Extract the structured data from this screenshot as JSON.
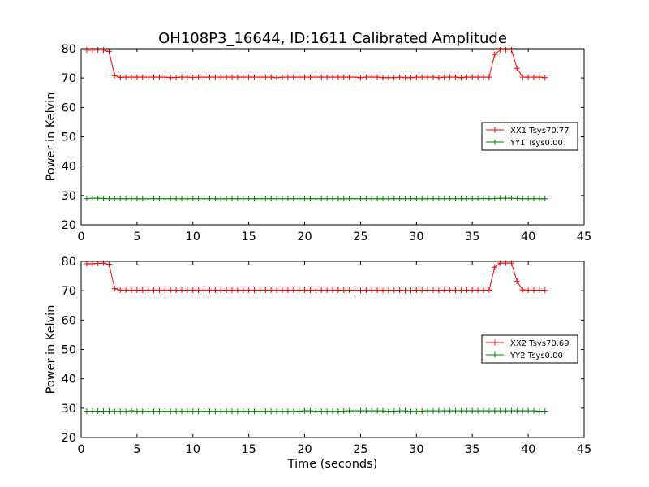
{
  "figure": {
    "title": "OH108P3_16644, ID:1611 Calibrated Amplitude",
    "xlabel": "Time (seconds)"
  },
  "chart_data": [
    {
      "type": "line",
      "ylabel": "Power in Kelvin",
      "xlim": [
        0,
        45
      ],
      "ylim": [
        20,
        80
      ],
      "xticks": [
        0,
        5,
        10,
        15,
        20,
        25,
        30,
        35,
        40,
        45
      ],
      "yticks": [
        20,
        30,
        40,
        50,
        60,
        70,
        80
      ],
      "legend_position": "right",
      "series": [
        {
          "name": "XX1 Tsys70.77",
          "color": "#ff0000",
          "x": [
            0.5,
            1.0,
            1.5,
            2.0,
            2.5,
            3.0,
            3.5,
            4.0,
            4.5,
            5.0,
            5.5,
            6.0,
            6.5,
            7.0,
            7.5,
            8.0,
            8.5,
            9.0,
            9.5,
            10.0,
            10.5,
            11.0,
            11.5,
            12.0,
            12.5,
            13.0,
            13.5,
            14.0,
            14.5,
            15.0,
            15.5,
            16.0,
            16.5,
            17.0,
            17.5,
            18.0,
            18.5,
            19.0,
            19.5,
            20.0,
            20.5,
            21.0,
            21.5,
            22.0,
            22.5,
            23.0,
            23.5,
            24.0,
            24.5,
            25.0,
            25.5,
            26.0,
            26.5,
            27.0,
            27.5,
            28.0,
            28.5,
            29.0,
            29.5,
            30.0,
            30.5,
            31.0,
            31.5,
            32.0,
            32.5,
            33.0,
            33.5,
            34.0,
            34.5,
            35.0,
            35.5,
            36.0,
            36.5,
            37.0,
            37.5,
            38.0,
            38.5,
            39.0,
            39.5,
            40.0,
            40.5,
            41.0,
            41.5
          ],
          "values": [
            79.5,
            79.5,
            79.6,
            79.5,
            79.0,
            70.8,
            70.2,
            70.3,
            70.3,
            70.3,
            70.3,
            70.3,
            70.3,
            70.3,
            70.3,
            70.1,
            70.2,
            70.3,
            70.3,
            70.2,
            70.3,
            70.3,
            70.3,
            70.3,
            70.3,
            70.3,
            70.3,
            70.3,
            70.3,
            70.3,
            70.3,
            70.3,
            70.3,
            70.3,
            70.1,
            70.3,
            70.3,
            70.3,
            70.3,
            70.3,
            70.3,
            70.3,
            70.3,
            70.3,
            70.3,
            70.3,
            70.3,
            70.3,
            70.3,
            70.1,
            70.3,
            70.3,
            70.3,
            70.1,
            70.1,
            70.1,
            70.3,
            70.1,
            70.1,
            70.3,
            70.3,
            70.3,
            70.3,
            70.1,
            70.3,
            70.3,
            70.3,
            70.1,
            70.3,
            70.3,
            70.3,
            70.3,
            70.3,
            78.0,
            79.6,
            79.6,
            79.6,
            73.3,
            70.3,
            70.3,
            70.3,
            70.3,
            70.1
          ]
        },
        {
          "name": "YY1 Tsys0.00",
          "color": "#008000",
          "x": [
            0.5,
            1.0,
            1.5,
            2.0,
            2.5,
            3.0,
            3.5,
            4.0,
            4.5,
            5.0,
            5.5,
            6.0,
            6.5,
            7.0,
            7.5,
            8.0,
            8.5,
            9.0,
            9.5,
            10.0,
            10.5,
            11.0,
            11.5,
            12.0,
            12.5,
            13.0,
            13.5,
            14.0,
            14.5,
            15.0,
            15.5,
            16.0,
            16.5,
            17.0,
            17.5,
            18.0,
            18.5,
            19.0,
            19.5,
            20.0,
            20.5,
            21.0,
            21.5,
            22.0,
            22.5,
            23.0,
            23.5,
            24.0,
            24.5,
            25.0,
            25.5,
            26.0,
            26.5,
            27.0,
            27.5,
            28.0,
            28.5,
            29.0,
            29.5,
            30.0,
            30.5,
            31.0,
            31.5,
            32.0,
            32.5,
            33.0,
            33.5,
            34.0,
            34.5,
            35.0,
            35.5,
            36.0,
            36.5,
            37.0,
            37.5,
            38.0,
            38.5,
            39.0,
            39.5,
            40.0,
            40.5,
            41.0,
            41.5
          ],
          "values": [
            28.9,
            29.1,
            29.1,
            29.0,
            28.9,
            28.9,
            28.9,
            28.9,
            28.9,
            28.9,
            28.9,
            28.9,
            28.9,
            28.9,
            28.9,
            28.9,
            28.9,
            28.9,
            28.9,
            28.9,
            28.9,
            28.9,
            28.9,
            28.9,
            28.9,
            28.9,
            28.9,
            28.9,
            28.9,
            28.9,
            28.9,
            28.9,
            28.9,
            28.9,
            28.9,
            28.9,
            28.9,
            28.9,
            28.9,
            28.9,
            28.9,
            28.9,
            28.9,
            28.9,
            28.9,
            28.9,
            28.9,
            28.9,
            28.9,
            28.9,
            28.9,
            28.9,
            28.9,
            28.9,
            28.9,
            28.9,
            28.9,
            28.9,
            28.9,
            28.9,
            28.9,
            28.9,
            28.9,
            28.9,
            28.9,
            28.9,
            28.9,
            28.9,
            28.9,
            28.9,
            28.9,
            29.0,
            28.9,
            29.0,
            29.1,
            29.1,
            29.1,
            29.0,
            28.9,
            28.9,
            28.9,
            28.9,
            28.9
          ]
        }
      ]
    },
    {
      "type": "line",
      "ylabel": "Power in Kelvin",
      "xlim": [
        0,
        45
      ],
      "ylim": [
        20,
        80
      ],
      "xticks": [
        0,
        5,
        10,
        15,
        20,
        25,
        30,
        35,
        40,
        45
      ],
      "yticks": [
        20,
        30,
        40,
        50,
        60,
        70,
        80
      ],
      "legend_position": "right",
      "series": [
        {
          "name": "XX2 Tsys70.69",
          "color": "#ff0000",
          "x": [
            0.5,
            1.0,
            1.5,
            2.0,
            2.5,
            3.0,
            3.5,
            4.0,
            4.5,
            5.0,
            5.5,
            6.0,
            6.5,
            7.0,
            7.5,
            8.0,
            8.5,
            9.0,
            9.5,
            10.0,
            10.5,
            11.0,
            11.5,
            12.0,
            12.5,
            13.0,
            13.5,
            14.0,
            14.5,
            15.0,
            15.5,
            16.0,
            16.5,
            17.0,
            17.5,
            18.0,
            18.5,
            19.0,
            19.5,
            20.0,
            20.5,
            21.0,
            21.5,
            22.0,
            22.5,
            23.0,
            23.5,
            24.0,
            24.5,
            25.0,
            25.5,
            26.0,
            26.5,
            27.0,
            27.5,
            28.0,
            28.5,
            29.0,
            29.5,
            30.0,
            30.5,
            31.0,
            31.5,
            32.0,
            32.5,
            33.0,
            33.5,
            34.0,
            34.5,
            35.0,
            35.5,
            36.0,
            36.5,
            37.0,
            37.5,
            38.0,
            38.5,
            39.0,
            39.5,
            40.0,
            40.5,
            41.0,
            41.5
          ],
          "values": [
            79.2,
            79.2,
            79.3,
            79.4,
            79.0,
            70.7,
            70.2,
            70.2,
            70.2,
            70.2,
            70.2,
            70.2,
            70.2,
            70.2,
            70.2,
            70.2,
            70.2,
            70.2,
            70.2,
            70.2,
            70.2,
            70.2,
            70.2,
            70.2,
            70.2,
            70.2,
            70.2,
            70.2,
            70.2,
            70.2,
            70.2,
            70.2,
            70.2,
            70.2,
            70.2,
            70.2,
            70.2,
            70.2,
            70.2,
            70.2,
            70.2,
            70.2,
            70.2,
            70.2,
            70.2,
            70.2,
            70.2,
            70.2,
            70.2,
            70.1,
            70.2,
            70.2,
            70.2,
            70.1,
            70.2,
            70.1,
            70.2,
            70.1,
            70.1,
            70.2,
            70.2,
            70.2,
            70.2,
            70.1,
            70.2,
            70.2,
            70.2,
            70.1,
            70.2,
            70.2,
            70.2,
            70.2,
            70.2,
            78.0,
            79.4,
            79.4,
            79.4,
            73.2,
            70.3,
            70.2,
            70.2,
            70.2,
            70.1
          ]
        },
        {
          "name": "YY2 Tsys0.00",
          "color": "#008000",
          "x": [
            0.5,
            1.0,
            1.5,
            2.0,
            2.5,
            3.0,
            3.5,
            4.0,
            4.5,
            5.0,
            5.5,
            6.0,
            6.5,
            7.0,
            7.5,
            8.0,
            8.5,
            9.0,
            9.5,
            10.0,
            10.5,
            11.0,
            11.5,
            12.0,
            12.5,
            13.0,
            13.5,
            14.0,
            14.5,
            15.0,
            15.5,
            16.0,
            16.5,
            17.0,
            17.5,
            18.0,
            18.5,
            19.0,
            19.5,
            20.0,
            20.5,
            21.0,
            21.5,
            22.0,
            22.5,
            23.0,
            23.5,
            24.0,
            24.5,
            25.0,
            25.5,
            26.0,
            26.5,
            27.0,
            27.5,
            28.0,
            28.5,
            29.0,
            29.5,
            30.0,
            30.5,
            31.0,
            31.5,
            32.0,
            32.5,
            33.0,
            33.5,
            34.0,
            34.5,
            35.0,
            35.5,
            36.0,
            36.5,
            37.0,
            37.5,
            38.0,
            38.5,
            39.0,
            39.5,
            40.0,
            40.5,
            41.0,
            41.5
          ],
          "values": [
            29.0,
            29.0,
            29.0,
            29.0,
            29.0,
            28.9,
            28.9,
            28.9,
            29.1,
            28.9,
            28.9,
            28.9,
            28.9,
            28.9,
            28.9,
            28.9,
            28.9,
            28.9,
            28.9,
            28.9,
            28.9,
            28.9,
            28.9,
            28.9,
            28.9,
            28.9,
            28.9,
            28.9,
            28.9,
            28.9,
            28.9,
            28.9,
            28.9,
            28.9,
            28.9,
            28.9,
            28.9,
            28.9,
            29.0,
            29.1,
            29.1,
            28.9,
            28.9,
            28.9,
            28.9,
            28.9,
            29.0,
            29.1,
            29.1,
            29.1,
            29.1,
            29.1,
            29.1,
            29.1,
            28.9,
            29.0,
            29.1,
            29.1,
            28.9,
            28.9,
            29.0,
            29.1,
            29.1,
            29.1,
            29.1,
            29.1,
            29.1,
            29.1,
            29.1,
            29.1,
            29.1,
            29.1,
            29.1,
            29.1,
            29.1,
            29.1,
            29.1,
            29.1,
            29.1,
            29.1,
            29.1,
            29.0,
            29.0
          ]
        }
      ]
    }
  ]
}
